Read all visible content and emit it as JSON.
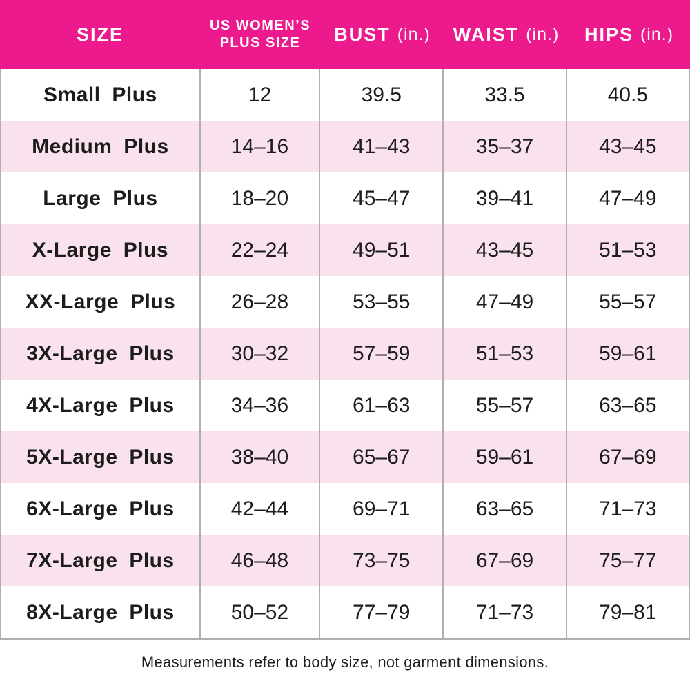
{
  "colors": {
    "header_bg": "#EC1A8C",
    "header_text": "#FFFFFF",
    "row_bg": "#FFFFFF",
    "row_alt_bg": "#F9E1ED",
    "divider": "#B0B0B0",
    "body_text": "#1C1C1C"
  },
  "chart_data": {
    "type": "table",
    "columns": [
      {
        "id": "size",
        "lines": [
          "SIZE"
        ],
        "unit": "",
        "width_pct": 29
      },
      {
        "id": "us-womens-plus-size",
        "lines": [
          "US WOMEN’S",
          "PLUS SIZE"
        ],
        "unit": "",
        "width_pct": 17.4
      },
      {
        "id": "bust",
        "lines": [
          "BUST"
        ],
        "unit": "(in.)",
        "width_pct": 18
      },
      {
        "id": "waist",
        "lines": [
          "WAIST"
        ],
        "unit": "(in.)",
        "width_pct": 17.9
      },
      {
        "id": "hips",
        "lines": [
          "HIPS"
        ],
        "unit": "(in.)",
        "width_pct": 17.7
      }
    ],
    "rows": [
      [
        "Small Plus",
        "12",
        "39.5",
        "33.5",
        "40.5"
      ],
      [
        "Medium Plus",
        "14–16",
        "41–43",
        "35–37",
        "43–45"
      ],
      [
        "Large Plus",
        "18–20",
        "45–47",
        "39–41",
        "47–49"
      ],
      [
        "X-Large Plus",
        "22–24",
        "49–51",
        "43–45",
        "51–53"
      ],
      [
        "XX-Large Plus",
        "26–28",
        "53–55",
        "47–49",
        "55–57"
      ],
      [
        "3X-Large Plus",
        "30–32",
        "57–59",
        "51–53",
        "59–61"
      ],
      [
        "4X-Large Plus",
        "34–36",
        "61–63",
        "55–57",
        "63–65"
      ],
      [
        "5X-Large Plus",
        "38–40",
        "65–67",
        "59–61",
        "67–69"
      ],
      [
        "6X-Large Plus",
        "42–44",
        "69–71",
        "63–65",
        "71–73"
      ],
      [
        "7X-Large Plus",
        "46–48",
        "73–75",
        "67–69",
        "75–77"
      ],
      [
        "8X-Large Plus",
        "50–52",
        "77–79",
        "71–73",
        "79–81"
      ]
    ]
  },
  "footer": {
    "note": "Measurements refer to body size, not garment dimensions."
  }
}
